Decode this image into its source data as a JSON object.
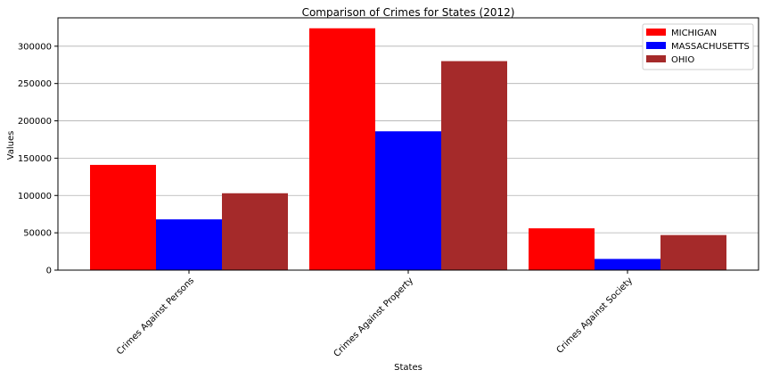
{
  "chart_data": {
    "type": "bar",
    "title": "Comparison of Crimes for States (2012)",
    "xlabel": "States",
    "ylabel": "Values",
    "categories": [
      "Crimes Against Persons",
      "Crimes Against Property",
      "Crimes Against Society"
    ],
    "series": [
      {
        "name": "MICHIGAN",
        "color": "#ff0000",
        "values": [
          141000,
          324000,
          56000
        ]
      },
      {
        "name": "MASSACHUSETTS",
        "color": "#0000ff",
        "values": [
          68000,
          186000,
          15000
        ]
      },
      {
        "name": "OHIO",
        "color": "#a52a2a",
        "values": [
          103000,
          280000,
          47000
        ]
      }
    ],
    "ylim": [
      0,
      338000
    ],
    "yticks": [
      0,
      50000,
      100000,
      150000,
      200000,
      250000,
      300000
    ],
    "grid": "y",
    "legend": "top-right"
  }
}
